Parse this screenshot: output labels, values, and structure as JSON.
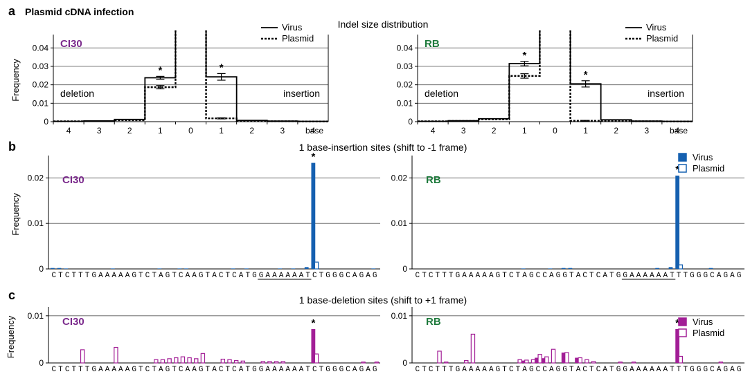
{
  "figure": {
    "panel_a": {
      "letter": "a",
      "heading": "Plasmid cDNA infection",
      "title": "Indel size distribution"
    },
    "panel_b": {
      "letter": "b",
      "title": "1 base-insertion sites (shift to -1 frame)"
    },
    "panel_c": {
      "letter": "c",
      "title": "1 base-deletion sites (shift to +1 frame)"
    }
  },
  "colors": {
    "virus_b": "#1560b0",
    "virus_c": "#a21e96",
    "cl30_label": "#7b2a8c",
    "rb_label": "#1e7a3c"
  },
  "chart_data": [
    {
      "id": "a-CI30",
      "type": "step",
      "panel": "a",
      "label": "CI30",
      "ylabel": "Frequency",
      "ylim": [
        0,
        0.045
      ],
      "yticks": [
        "0",
        "0.01",
        "0.02",
        "0.03",
        "0.04"
      ],
      "categories": [
        "4",
        "3",
        "2",
        "1",
        "0",
        "1",
        "2",
        "3",
        "4"
      ],
      "x_unit": "base",
      "regions": [
        "deletion",
        "insertion"
      ],
      "legend": [
        "Virus",
        "Plasmid"
      ],
      "series": [
        {
          "name": "Virus",
          "values": [
            0.0002,
            0.0004,
            0.0012,
            0.0238,
            0.045,
            0.0243,
            0.0007,
            0.0003,
            0.0002
          ],
          "err": [
            0,
            0,
            0,
            0.0008,
            0,
            0.0018,
            0,
            0,
            0
          ]
        },
        {
          "name": "Plasmid",
          "values": [
            0.0002,
            0.0003,
            0.0008,
            0.0187,
            0.045,
            0.0018,
            0.0003,
            0.0002,
            0.0001
          ],
          "err": [
            0,
            0,
            0,
            0.0009,
            0,
            0.0003,
            0,
            0,
            0
          ]
        }
      ],
      "significant": [
        3,
        5
      ]
    },
    {
      "id": "a-RB",
      "type": "step",
      "panel": "a",
      "label": "RB",
      "ylabel": "",
      "ylim": [
        0,
        0.045
      ],
      "yticks": [
        "0",
        "0.01",
        "0.02",
        "0.03",
        "0.04"
      ],
      "categories": [
        "4",
        "3",
        "2",
        "1",
        "0",
        "1",
        "2",
        "3",
        "4"
      ],
      "x_unit": "base",
      "regions": [
        "deletion",
        "insertion"
      ],
      "legend": [
        "Virus",
        "Plasmid"
      ],
      "series": [
        {
          "name": "Virus",
          "values": [
            0.0002,
            0.0005,
            0.0016,
            0.0315,
            0.045,
            0.0205,
            0.001,
            0.0003,
            0.0002
          ],
          "err": [
            0,
            0,
            0,
            0.0012,
            0,
            0.0017,
            0,
            0,
            0
          ]
        },
        {
          "name": "Plasmid",
          "values": [
            0.0002,
            0.0004,
            0.0013,
            0.0248,
            0.045,
            0.0005,
            0.0004,
            0.0002,
            0.0001
          ],
          "err": [
            0,
            0,
            0,
            0.0012,
            0,
            0.0002,
            0,
            0,
            0
          ]
        }
      ],
      "significant": [
        3,
        5
      ]
    },
    {
      "id": "b-CI30",
      "type": "bar",
      "panel": "b",
      "label": "CI30",
      "ylabel": "Frequency",
      "ylim": [
        0,
        0.024
      ],
      "yticks": [
        "0",
        "0.01",
        "0.02"
      ],
      "sequence": "CTCTTTGAAAAAGTCTAGTCAAGTACTCATGGAAAAAATCTGGGCAGAG",
      "underline": [
        31,
        38
      ],
      "series": [
        {
          "name": "Virus",
          "values": [
            0.0002,
            0.0002,
            0.0001,
            0,
            0,
            0,
            0,
            0,
            0,
            0.0001,
            0,
            0,
            0,
            0,
            0,
            0,
            0.0001,
            0,
            0,
            0.0001,
            0.0001,
            0,
            0,
            0,
            0,
            0,
            0,
            0.0001,
            0,
            0.0001,
            0,
            0,
            0,
            0,
            0.0001,
            0,
            0.0001,
            0,
            0.0004,
            0.0233,
            0,
            0,
            0,
            0,
            0,
            0,
            0,
            0,
            0.0001,
            0,
            0.0001,
            0,
            0,
            0,
            0,
            0,
            0,
            0,
            0,
            0,
            0,
            0,
            0,
            0,
            0,
            0,
            0,
            0,
            0,
            0,
            0
          ]
        },
        {
          "name": "Plasmid",
          "values": [
            0,
            0,
            0,
            0,
            0,
            0,
            0,
            0,
            0,
            0,
            0,
            0,
            0,
            0,
            0,
            0,
            0,
            0,
            0,
            0,
            0,
            0,
            0,
            0,
            0,
            0,
            0,
            0,
            0,
            0,
            0,
            0,
            0,
            0,
            0,
            0,
            0,
            0,
            0,
            0.0015,
            0,
            0,
            0,
            0,
            0,
            0,
            0,
            0,
            0,
            0,
            0,
            0,
            0,
            0,
            0,
            0,
            0,
            0,
            0,
            0,
            0,
            0,
            0,
            0,
            0,
            0,
            0,
            0,
            0,
            0,
            0
          ]
        }
      ],
      "significant": [
        39
      ]
    },
    {
      "id": "b-RB",
      "type": "bar",
      "panel": "b",
      "label": "RB",
      "ylabel": "",
      "ylim": [
        0,
        0.024
      ],
      "yticks": [
        "0",
        "0.01",
        "0.02"
      ],
      "sequence": "CTCTTTGAAAAAGTCTAGCCAGGTACTCATGGAAAAAATTTGGGCAGAG",
      "underline": [
        31,
        38
      ],
      "legend": [
        "Virus",
        "Plasmid"
      ],
      "series": [
        {
          "name": "Virus",
          "values": [
            0,
            0,
            0,
            0,
            0,
            0,
            0,
            0,
            0,
            0,
            0,
            0,
            0,
            0,
            0,
            0,
            0.0001,
            0,
            0,
            0,
            0.0001,
            0,
            0.0002,
            0.0002,
            0,
            0,
            0,
            0,
            0,
            0,
            0,
            0,
            0,
            0,
            0,
            0,
            0.0002,
            0,
            0.0004,
            0.0205,
            0,
            0,
            0,
            0,
            0.0002,
            0,
            0,
            0,
            0,
            0,
            0,
            0,
            0,
            0,
            0,
            0,
            0,
            0,
            0,
            0,
            0,
            0,
            0,
            0,
            0,
            0,
            0,
            0,
            0,
            0,
            0
          ]
        },
        {
          "name": "Plasmid",
          "values": [
            0,
            0,
            0,
            0,
            0,
            0,
            0,
            0,
            0,
            0,
            0,
            0,
            0,
            0,
            0,
            0,
            0,
            0,
            0,
            0,
            0,
            0,
            0,
            0,
            0,
            0,
            0,
            0,
            0,
            0,
            0,
            0,
            0,
            0,
            0,
            0,
            0,
            0,
            0,
            0.0009,
            0,
            0,
            0,
            0,
            0,
            0,
            0,
            0,
            0,
            0,
            0,
            0,
            0,
            0,
            0,
            0,
            0,
            0,
            0,
            0,
            0,
            0,
            0,
            0,
            0,
            0,
            0,
            0,
            0,
            0,
            0
          ]
        }
      ],
      "significant": [
        39
      ]
    },
    {
      "id": "c-CI30",
      "type": "bar",
      "panel": "c",
      "label": "CI30",
      "ylabel": "Frequency",
      "ylim": [
        0,
        0.011
      ],
      "yticks": [
        "0",
        "0.01"
      ],
      "sequence": "CTCTTTGAAAAAGTCTAGTCAAGTACTCATGGAAAAAATCTGGGCAGAG",
      "series": [
        {
          "name": "Virus",
          "values": [
            0,
            0,
            0,
            0,
            0,
            0,
            0,
            0,
            0,
            0,
            0,
            0,
            0,
            0,
            0,
            0,
            0,
            0,
            0,
            0,
            0,
            0,
            0,
            0,
            0,
            0,
            0,
            0,
            0,
            0,
            0,
            0,
            0,
            0,
            0,
            0,
            0,
            0,
            0,
            0.0072,
            0,
            0,
            0,
            0,
            0,
            0,
            0,
            0,
            0,
            0,
            0,
            0,
            0,
            0,
            0,
            0,
            0,
            0,
            0,
            0,
            0,
            0,
            0,
            0,
            0,
            0,
            0,
            0,
            0,
            0,
            0
          ]
        },
        {
          "name": "Plasmid",
          "values": [
            0,
            0,
            0,
            0,
            0.0028,
            0,
            0,
            0,
            0,
            0.0033,
            0,
            0,
            0,
            0,
            0,
            0.0007,
            0.0007,
            0.0009,
            0.0011,
            0.0013,
            0.0011,
            0.0009,
            0.002,
            0,
            0,
            0.0008,
            0.0007,
            0.0005,
            0.0004,
            0,
            0,
            0.0003,
            0.0003,
            0.0003,
            0.0003,
            0,
            0,
            0,
            0,
            0.0019,
            0,
            0,
            0,
            0,
            0,
            0,
            0.0002,
            0,
            0.0002,
            0,
            0,
            0,
            0,
            0,
            0,
            0,
            0,
            0,
            0,
            0,
            0,
            0,
            0,
            0,
            0,
            0,
            0,
            0,
            0,
            0,
            0
          ]
        }
      ],
      "significant": [
        39
      ]
    },
    {
      "id": "c-RB",
      "type": "bar",
      "panel": "c",
      "label": "RB",
      "ylabel": "",
      "ylim": [
        0,
        0.011
      ],
      "yticks": [
        "0",
        "0.01"
      ],
      "sequence": "CTCTTTGAAAAAGTCTAGCCAGGTACTCATGGAAAAAATTTGGGCAGAG",
      "legend": [
        "Virus",
        "Plasmid"
      ],
      "series": [
        {
          "name": "Virus",
          "values": [
            0,
            0,
            0,
            0,
            0,
            0,
            0,
            0,
            0,
            0,
            0,
            0,
            0,
            0,
            0,
            0,
            0.0005,
            0,
            0.0011,
            0.001,
            0,
            0,
            0.0022,
            0,
            0.0011,
            0,
            0,
            0,
            0,
            0,
            0,
            0,
            0,
            0,
            0,
            0,
            0,
            0,
            0,
            0.0072,
            0,
            0,
            0,
            0,
            0,
            0,
            0,
            0,
            0,
            0,
            0,
            0,
            0,
            0,
            0,
            0,
            0,
            0,
            0,
            0,
            0,
            0,
            0,
            0,
            0,
            0,
            0,
            0,
            0,
            0,
            0
          ]
        },
        {
          "name": "Plasmid",
          "values": [
            0,
            0,
            0,
            0.0025,
            0.0002,
            0,
            0,
            0.0005,
            0.0061,
            0,
            0,
            0,
            0,
            0,
            0,
            0.0007,
            0.0006,
            0.0007,
            0.0018,
            0.0013,
            0.0029,
            0,
            0.0022,
            0,
            0.0011,
            0.0007,
            0.0003,
            0,
            0,
            0,
            0.0002,
            0,
            0.0002,
            0,
            0,
            0,
            0,
            0,
            0,
            0.0014,
            0,
            0,
            0,
            0,
            0,
            0.0002,
            0,
            0,
            0,
            0.0002,
            0,
            0,
            0,
            0,
            0,
            0,
            0,
            0,
            0,
            0,
            0,
            0,
            0,
            0,
            0,
            0,
            0,
            0,
            0,
            0,
            0
          ]
        }
      ],
      "significant": [
        39
      ]
    }
  ]
}
